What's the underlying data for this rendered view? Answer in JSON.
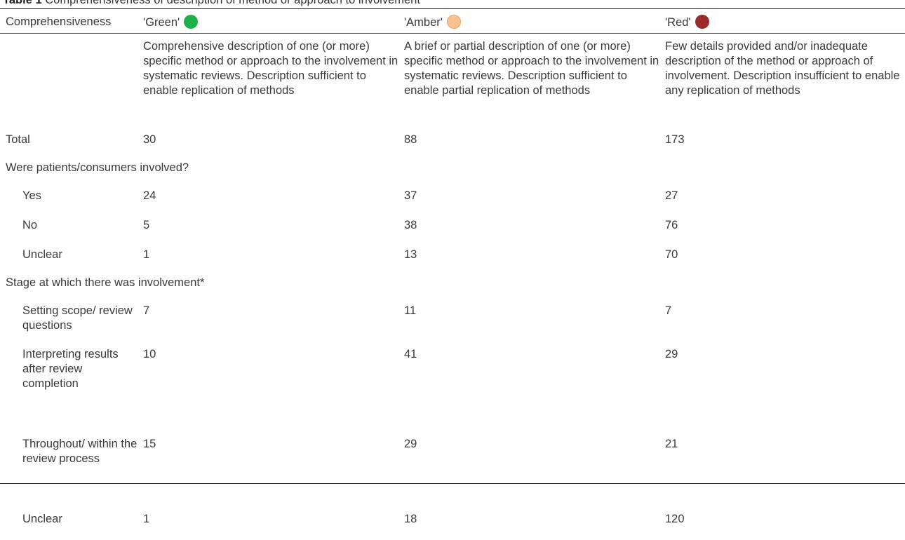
{
  "caption": {
    "label": "Table 1",
    "text": "Comprehensiveness of description of method or approach to involvement"
  },
  "header": {
    "col0": "Comprehensiveness",
    "col1": "'Green'",
    "col2": "'Amber'",
    "col3": "'Red'",
    "colors": {
      "green": "#1fb24a",
      "amber": "#f6c390",
      "red": "#9b2a2a"
    }
  },
  "description": {
    "green": "Comprehensive description of one (or more) specific method or approach to the involvement in systematic reviews. Description sufficient to enable replication of methods",
    "amber": "A brief or partial description of one (or more) specific method or approach to the involvement in systematic reviews. Description sufficient to enable partial replication of methods",
    "red": "Few details provided and/or inadequate description of the method or approach of involvement. Description insufficient to enable any replication of methods"
  },
  "total": {
    "label": "Total",
    "green": "30",
    "amber": "88",
    "red": "173"
  },
  "section1": {
    "title": "Were patients/consumers involved?",
    "rows": [
      {
        "label": "Yes",
        "green": "24",
        "amber": "37",
        "red": "27"
      },
      {
        "label": "No",
        "green": "5",
        "amber": "38",
        "red": "76"
      },
      {
        "label": "Unclear",
        "green": "1",
        "amber": "13",
        "red": "70"
      }
    ]
  },
  "section2": {
    "title": "Stage at which there was involvement*",
    "rows": [
      {
        "label": "Setting scope/ review questions",
        "green": "7",
        "amber": "11",
        "red": "7"
      },
      {
        "label": "Interpreting results after review completion",
        "green": "10",
        "amber": "41",
        "red": "29"
      },
      {
        "label": "Throughout/ within the review process",
        "green": "15",
        "amber": "29",
        "red": "21"
      },
      {
        "label": "Unclear",
        "green": "1",
        "amber": "18",
        "red": "120"
      }
    ]
  }
}
